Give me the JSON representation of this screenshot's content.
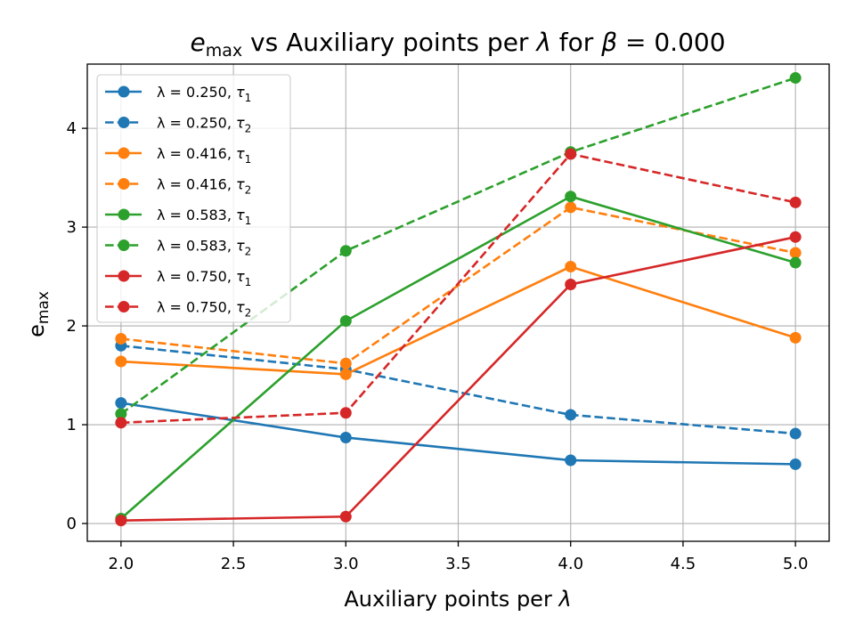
{
  "chart_data": {
    "type": "line",
    "title": {
      "main": "e",
      "sub": "max",
      "mid": " vs Auxiliary points per ",
      "lambda": "λ",
      "for_text": " for ",
      "beta": "β",
      "beta_value": " = 0.000"
    },
    "xlabel": {
      "main": "Auxiliary points per ",
      "symbol": "λ"
    },
    "ylabel": {
      "main": "e",
      "sub": "max"
    },
    "x": [
      2.0,
      3.0,
      4.0,
      5.0
    ],
    "xlim": [
      1.85,
      5.15
    ],
    "ylim": [
      -0.18,
      4.65
    ],
    "xticks": [
      2.0,
      2.5,
      3.0,
      3.5,
      4.0,
      4.5,
      5.0
    ],
    "xtick_labels": [
      "2.0",
      "2.5",
      "3.0",
      "3.5",
      "4.0",
      "4.5",
      "5.0"
    ],
    "yticks": [
      0,
      1,
      2,
      3,
      4
    ],
    "ytick_labels": [
      "0",
      "1",
      "2",
      "3",
      "4"
    ],
    "grid": true,
    "legend_position": "upper-left",
    "series": [
      {
        "lambda_text": "λ = 0.250, ",
        "tau": "τ",
        "tau_sub": "1",
        "color": "#1f77b4",
        "style": "solid",
        "values": [
          1.22,
          0.87,
          0.64,
          0.6
        ]
      },
      {
        "lambda_text": "λ = 0.250, ",
        "tau": "τ",
        "tau_sub": "2",
        "color": "#1f77b4",
        "style": "dashed",
        "values": [
          1.8,
          1.56,
          1.1,
          0.91
        ]
      },
      {
        "lambda_text": "λ = 0.416, ",
        "tau": "τ",
        "tau_sub": "1",
        "color": "#ff7f0e",
        "style": "solid",
        "values": [
          1.64,
          1.51,
          2.6,
          1.88
        ]
      },
      {
        "lambda_text": "λ = 0.416, ",
        "tau": "τ",
        "tau_sub": "2",
        "color": "#ff7f0e",
        "style": "dashed",
        "values": [
          1.87,
          1.62,
          3.2,
          2.74
        ]
      },
      {
        "lambda_text": "λ = 0.583, ",
        "tau": "τ",
        "tau_sub": "1",
        "color": "#2ca02c",
        "style": "solid",
        "values": [
          0.05,
          2.05,
          3.31,
          2.64
        ]
      },
      {
        "lambda_text": "λ = 0.583, ",
        "tau": "τ",
        "tau_sub": "2",
        "color": "#2ca02c",
        "style": "dashed",
        "values": [
          1.11,
          2.76,
          3.76,
          4.51
        ]
      },
      {
        "lambda_text": "λ = 0.750, ",
        "tau": "τ",
        "tau_sub": "1",
        "color": "#d62728",
        "style": "solid",
        "values": [
          0.03,
          0.07,
          2.42,
          2.9
        ]
      },
      {
        "lambda_text": "λ = 0.750, ",
        "tau": "τ",
        "tau_sub": "2",
        "color": "#d62728",
        "style": "dashed",
        "values": [
          1.02,
          1.12,
          3.74,
          3.25
        ]
      }
    ]
  }
}
